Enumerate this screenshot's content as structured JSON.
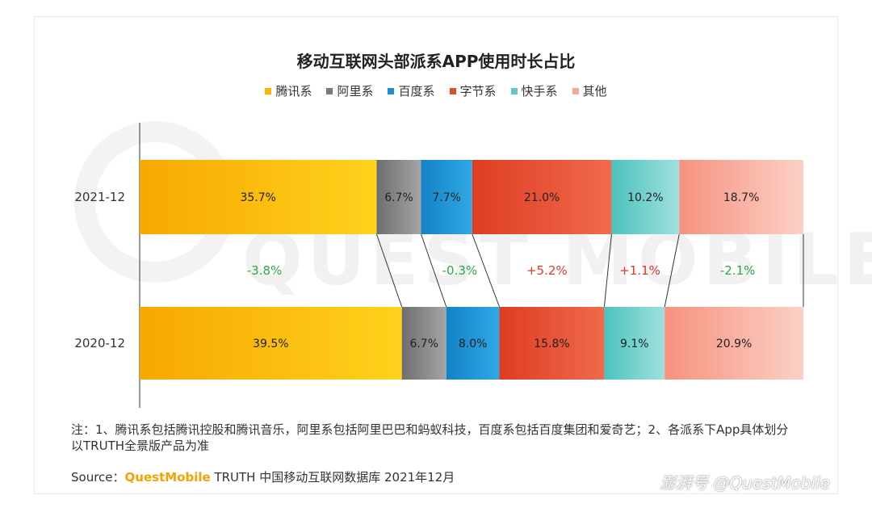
{
  "title": "移动互联网头部派系APP使用时长占比",
  "legend": [
    {
      "label": "腾讯系",
      "color": "#ffb500"
    },
    {
      "label": "阿里系",
      "color": "#7a7a7a"
    },
    {
      "label": "百度系",
      "color": "#1c90d0"
    },
    {
      "label": "字节系",
      "color": "#e24a2a"
    },
    {
      "label": "快手系",
      "color": "#5fcbc8"
    },
    {
      "label": "其他",
      "color": "#f7a799"
    }
  ],
  "chart_data": {
    "type": "bar",
    "orientation": "horizontal-stacked-100",
    "categories": [
      "2021-12",
      "2020-12"
    ],
    "series": [
      {
        "name": "腾讯系",
        "values": [
          35.7,
          39.5
        ],
        "labels": [
          "35.7%",
          "39.5%"
        ],
        "gradient": [
          "#f7a800",
          "#ffd21c"
        ]
      },
      {
        "name": "阿里系",
        "values": [
          6.7,
          6.7
        ],
        "labels": [
          "6.7%",
          "6.7%"
        ],
        "gradient": [
          "#6e6e6e",
          "#a5a5a5"
        ]
      },
      {
        "name": "百度系",
        "values": [
          7.7,
          8.0
        ],
        "labels": [
          "7.7%",
          "8.0%"
        ],
        "gradient": [
          "#1383c6",
          "#30a8e6"
        ]
      },
      {
        "name": "字节系",
        "values": [
          21.0,
          15.8
        ],
        "labels": [
          "21.0%",
          "15.8%"
        ],
        "gradient": [
          "#de3d23",
          "#f06a4b"
        ]
      },
      {
        "name": "快手系",
        "values": [
          10.2,
          9.1
        ],
        "labels": [
          "10.2%",
          "9.1%"
        ],
        "gradient": [
          "#4cc3bf",
          "#a0e0dd"
        ]
      },
      {
        "name": "其他",
        "values": [
          18.7,
          20.9
        ],
        "labels": [
          "18.7%",
          "20.9%"
        ],
        "gradient": [
          "#f6917e",
          "#fcd1c6"
        ]
      }
    ],
    "changes": [
      {
        "series": "腾讯系",
        "label": "-3.8%",
        "color": "#2aa84a"
      },
      {
        "series": "百度系",
        "label": "-0.3%",
        "color": "#2aa84a"
      },
      {
        "series": "字节系",
        "label": "+5.2%",
        "color": "#e2382a"
      },
      {
        "series": "快手系",
        "label": "+1.1%",
        "color": "#e2382a"
      },
      {
        "series": "其他",
        "label": "-2.1%",
        "color": "#2aa84a"
      }
    ],
    "xlim": [
      0,
      100
    ]
  },
  "note": "注：1、腾讯系包括腾讯控股和腾讯音乐，阿里系包括阿里巴巴和蚂蚁科技，百度系包括百度集团和爱奇艺；2、各派系下App具体划分以TRUTH全景版产品为准",
  "source": {
    "prefix": "Source：",
    "brand": "QuestMobile",
    "rest": " TRUTH 中国移动互联网数据库 2021年12月"
  },
  "background_mark": "QUEST MOBILE",
  "watermark": "澎湃号 @QuestMobile"
}
